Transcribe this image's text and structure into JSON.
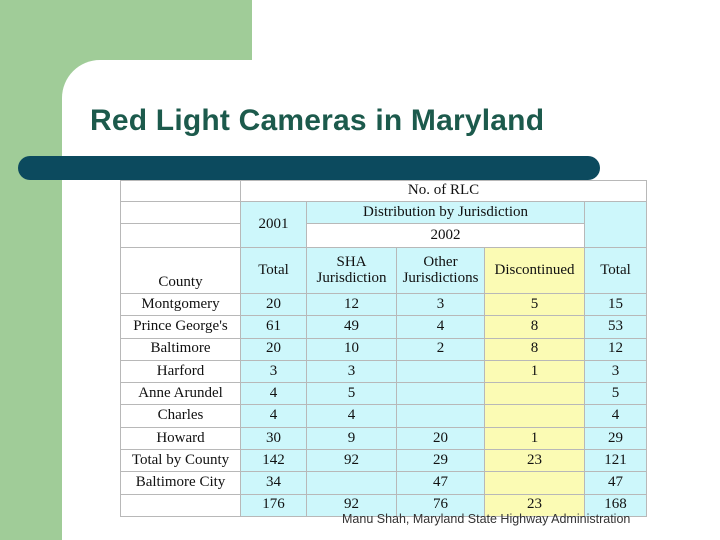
{
  "slide": {
    "title": "Red Light Cameras in Maryland",
    "footer": "Manu Shah, Maryland State Highway Administration",
    "colors": {
      "title": "#1c5a4c",
      "bar": "#0c4a5e",
      "green": "#a0cc98",
      "blue_cell": "#cdf7fb",
      "yellow_cell": "#fbfbb4"
    }
  },
  "table": {
    "header_main": "No. of RLC",
    "year_2001": "2001",
    "distribution": "Distribution by Jurisdiction",
    "year_2002": "2002",
    "col_county": "County",
    "col_total_2001": "Total",
    "col_sha": "SHA Jurisdiction",
    "col_other": "Other Jurisdictions",
    "col_discontinued": "Discontinued",
    "col_total_2002": "Total",
    "rows": [
      {
        "county": "Montgomery",
        "total_2001": "20",
        "sha": "12",
        "other": "3",
        "discontinued": "5",
        "total_2002": "15"
      },
      {
        "county": "Prince George's",
        "total_2001": "61",
        "sha": "49",
        "other": "4",
        "discontinued": "8",
        "total_2002": "53"
      },
      {
        "county": "Baltimore",
        "total_2001": "20",
        "sha": "10",
        "other": "2",
        "discontinued": "8",
        "total_2002": "12"
      },
      {
        "county": "Harford",
        "total_2001": "3",
        "sha": "3",
        "other": "",
        "discontinued": "1",
        "total_2002": "3"
      },
      {
        "county": "Anne Arundel",
        "total_2001": "4",
        "sha": "5",
        "other": "",
        "discontinued": "",
        "total_2002": "5"
      },
      {
        "county": "Charles",
        "total_2001": "4",
        "sha": "4",
        "other": "",
        "discontinued": "",
        "total_2002": "4"
      },
      {
        "county": "Howard",
        "total_2001": "30",
        "sha": "9",
        "other": "20",
        "discontinued": "1",
        "total_2002": "29"
      },
      {
        "county": "Total by County",
        "total_2001": "142",
        "sha": "92",
        "other": "29",
        "discontinued": "23",
        "total_2002": "121"
      },
      {
        "county": "Baltimore City",
        "total_2001": "34",
        "sha": "",
        "other": "47",
        "discontinued": "",
        "total_2002": "47"
      },
      {
        "county": "",
        "total_2001": "176",
        "sha": "92",
        "other": "76",
        "discontinued": "23",
        "total_2002": "168"
      }
    ]
  }
}
